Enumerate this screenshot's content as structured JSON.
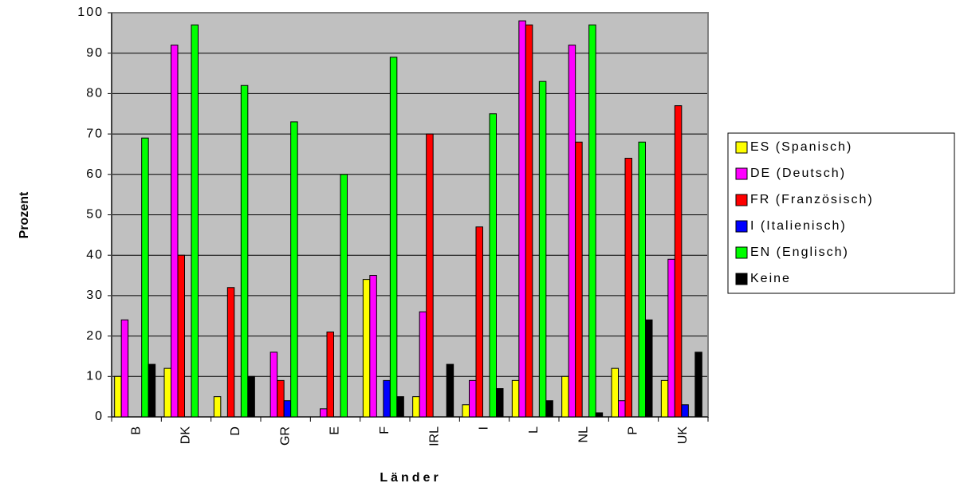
{
  "chart_data": {
    "type": "bar",
    "xlabel": "Länder",
    "ylabel": "Prozent",
    "categories": [
      "B",
      "DK",
      "D",
      "GR",
      "E",
      "F",
      "IRL",
      "I",
      "L",
      "NL",
      "P",
      "UK"
    ],
    "series": [
      {
        "name": "ES (Spanisch)",
        "color": "#ffff00",
        "values": [
          10,
          12,
          5,
          0,
          0,
          34,
          5,
          3,
          9,
          10,
          12,
          9
        ]
      },
      {
        "name": "DE (Deutsch)",
        "color": "#ff00ff",
        "values": [
          24,
          92,
          0,
          16,
          2,
          35,
          26,
          9,
          98,
          92,
          4,
          39
        ]
      },
      {
        "name": "FR (Französisch)",
        "color": "#ff0000",
        "values": [
          0,
          40,
          32,
          9,
          21,
          0,
          70,
          47,
          97,
          68,
          64,
          77
        ]
      },
      {
        "name": "I (Italienisch)",
        "color": "#0000ff",
        "values": [
          0,
          0,
          0,
          4,
          0,
          9,
          0,
          0,
          0,
          0,
          0,
          3
        ]
      },
      {
        "name": "EN (Englisch)",
        "color": "#00ff00",
        "values": [
          69,
          97,
          82,
          73,
          60,
          89,
          0,
          75,
          83,
          97,
          68,
          0
        ]
      },
      {
        "name": "Keine",
        "color": "#000000",
        "values": [
          13,
          0,
          10,
          0,
          0,
          5,
          13,
          7,
          4,
          1,
          24,
          16
        ]
      }
    ],
    "ylim": [
      0,
      100
    ],
    "yticks": [
      0,
      10,
      20,
      30,
      40,
      50,
      60,
      70,
      80,
      90,
      100
    ],
    "grid": true,
    "legend": "right"
  }
}
